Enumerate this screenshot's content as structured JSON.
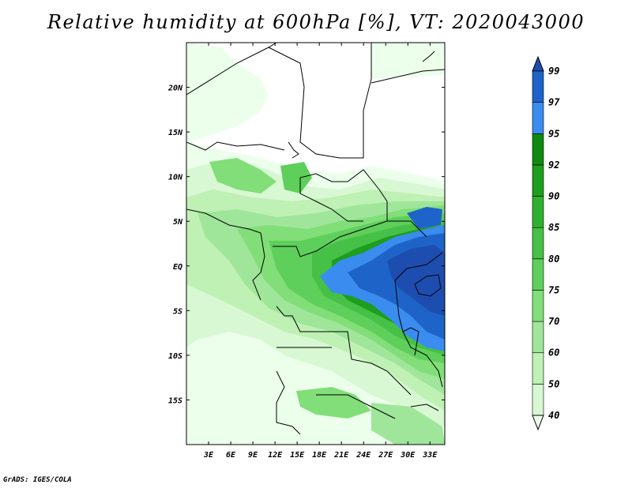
{
  "title": "Relative humidity at 600hPa [%], VT: 2020043000",
  "footer": "GrADS: IGES/COLA",
  "map": {
    "lon_range": [
      0,
      35
    ],
    "lat_range": [
      -20,
      25
    ],
    "lon_ticks": [
      "3E",
      "6E",
      "9E",
      "12E",
      "15E",
      "18E",
      "21E",
      "24E",
      "27E",
      "30E",
      "33E"
    ],
    "lat_ticks": [
      "20N",
      "15N",
      "10N",
      "5N",
      "EQ",
      "5S",
      "10S",
      "15S"
    ]
  },
  "colorbar": {
    "levels": [
      "40",
      "50",
      "60",
      "70",
      "75",
      "80",
      "85",
      "90",
      "92",
      "95",
      "97",
      "99"
    ],
    "colors": [
      "#ebffeb",
      "#d7f8d2",
      "#bff0b4",
      "#9fe69a",
      "#82de78",
      "#5fcf5c",
      "#46c046",
      "#2fb12f",
      "#1d9e1d",
      "#0f8a0f",
      "#3a8cef",
      "#1e64c8",
      "#1e4db0"
    ]
  }
}
